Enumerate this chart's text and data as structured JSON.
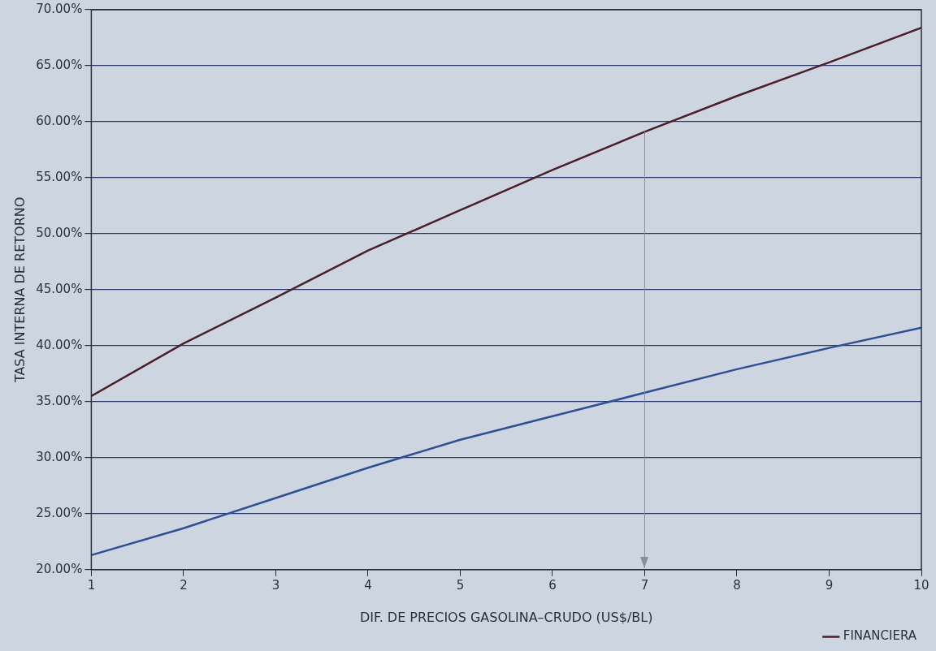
{
  "chart_data": {
    "type": "line",
    "xlabel": "DIF. DE PRECIOS GASOLINA–CRUDO (US$/BL)",
    "ylabel": "TASA INTERNA DE RETORNO",
    "x": [
      1,
      2,
      3,
      4,
      5,
      6,
      7,
      8,
      9,
      10
    ],
    "series": [
      {
        "name": "FINANCIERA",
        "color": "#4a1f2a",
        "values": [
          35.5,
          40.2,
          44.3,
          48.5,
          52.1,
          55.7,
          59.1,
          62.3,
          65.3,
          68.4
        ]
      },
      {
        "color": "#2f4f95",
        "values": [
          21.3,
          23.7,
          26.4,
          29.1,
          31.6,
          33.7,
          35.8,
          37.9,
          39.8,
          41.6
        ]
      }
    ],
    "xlim": [
      1,
      10
    ],
    "xticks": [
      1,
      2,
      3,
      4,
      5,
      6,
      7,
      8,
      9,
      10
    ],
    "ylim": [
      20,
      70
    ],
    "yticks": [
      {
        "value": 20,
        "label": "20.00%"
      },
      {
        "value": 25,
        "label": "25.00%"
      },
      {
        "value": 30,
        "label": "30.00%"
      },
      {
        "value": 35,
        "label": "35.00%"
      },
      {
        "value": 40,
        "label": "40.00%"
      },
      {
        "value": 45,
        "label": "45.00%"
      },
      {
        "value": 50,
        "label": "50.00%"
      },
      {
        "value": 55,
        "label": "55.00%"
      },
      {
        "value": 60,
        "label": "60.00%"
      },
      {
        "value": 65,
        "label": "65.00%"
      },
      {
        "value": 70,
        "label": "70.00%"
      }
    ],
    "ref_lines": [
      {
        "axis": "x",
        "value": 7,
        "color": "#8a8f99"
      }
    ],
    "grid": "y",
    "legend": "bottom right",
    "marker": "none",
    "line_style": "solid"
  }
}
